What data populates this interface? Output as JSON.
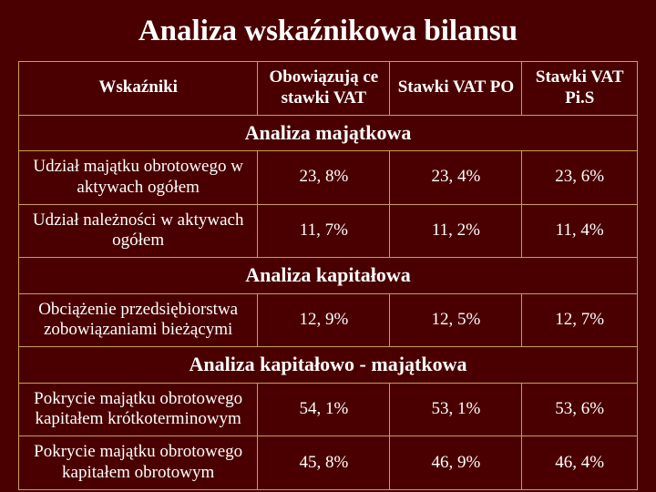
{
  "title": "Analiza wskaźnikowa bilansu",
  "columns": [
    "Wskaźniki",
    "Obowiązują\nce stawki\nVAT",
    "Stawki VAT\nPO",
    "Stawki\nVAT Pi.S"
  ],
  "sections": [
    {
      "heading": "Analiza majątkowa",
      "rows": [
        {
          "label": "Udział majątku obrotowego w aktywach ogółem",
          "c1": "23, 8%",
          "c2": "23, 4%",
          "c3": "23, 6%"
        },
        {
          "label": "Udział należności w aktywach ogółem",
          "c1": "11, 7%",
          "c2": "11, 2%",
          "c3": "11, 4%"
        }
      ]
    },
    {
      "heading": "Analiza kapitałowa",
      "rows": [
        {
          "label": "Obciążenie przedsiębiorstwa zobowiązaniami bieżącymi",
          "c1": "12, 9%",
          "c2": "12, 5%",
          "c3": "12, 7%"
        }
      ]
    },
    {
      "heading": "Analiza kapitałowo - majątkowa",
      "rows": [
        {
          "label": "Pokrycie majątku obrotowego kapitałem krótkoterminowym",
          "c1": "54, 1%",
          "c2": "53, 1%",
          "c3": "53, 6%"
        },
        {
          "label": "Pokrycie majątku obrotowego kapitałem obrotowym",
          "c1": "45, 8%",
          "c2": "46, 9%",
          "c3": "46, 4%"
        }
      ]
    }
  ],
  "colors": {
    "background": "#4a0000",
    "text": "#ffffff",
    "border": "#c8a050"
  }
}
